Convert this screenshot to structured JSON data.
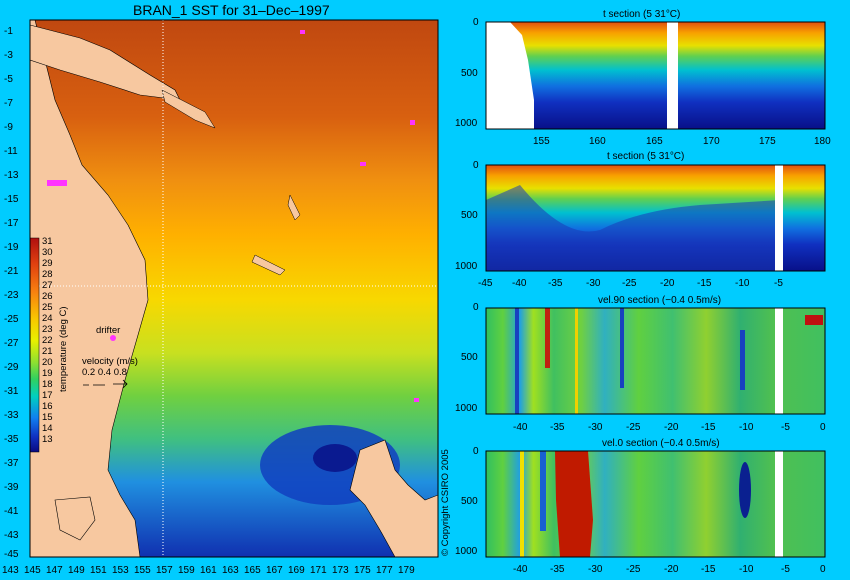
{
  "map": {
    "title": "BRAN_1 SST for 31–Dec–1997",
    "lon_ticks": [
      "143",
      "145",
      "147",
      "149",
      "151",
      "153",
      "155",
      "157",
      "159",
      "161",
      "163",
      "165",
      "167",
      "169",
      "171",
      "173",
      "175",
      "177",
      "179"
    ],
    "lat_ticks": [
      "-1",
      "-3",
      "-5",
      "-7",
      "-9",
      "-11",
      "-13",
      "-15",
      "-17",
      "-19",
      "-21",
      "-23",
      "-25",
      "-27",
      "-29",
      "-31",
      "-33",
      "-35",
      "-37",
      "-39",
      "-41",
      "-43",
      "-45"
    ],
    "colorbar_label": "temperature (deg C)",
    "colorbar_ticks": [
      "31",
      "30",
      "29",
      "28",
      "27",
      "26",
      "25",
      "24",
      "23",
      "22",
      "21",
      "20",
      "19",
      "18",
      "17",
      "16",
      "15",
      "14",
      "13"
    ],
    "drifter_label": "drifter",
    "velocity_label": "velocity (m/s)",
    "velocity_values": "0.2 0.4 0.8",
    "copyright": "© Copyright CSIRO 2005",
    "land_color": "#f7c8a0",
    "drifter_color": "#ff33ff"
  },
  "panels": [
    {
      "title": "t section (5       31°C)",
      "x_ticks": [
        "155",
        "160",
        "165",
        "170",
        "175",
        "180"
      ],
      "y_ticks": [
        "0",
        "500",
        "1000"
      ]
    },
    {
      "title": "t section (5       31°C)",
      "x_ticks": [
        "-45",
        "-40",
        "-35",
        "-30",
        "-25",
        "-20",
        "-15",
        "-10",
        "-5"
      ],
      "y_ticks": [
        "0",
        "500",
        "1000"
      ]
    },
    {
      "title": "vel.90 section (−0.4       0.5m/s)",
      "x_ticks": [
        "-40",
        "-35",
        "-30",
        "-25",
        "-20",
        "-15",
        "-10",
        "-5",
        "0"
      ],
      "y_ticks": [
        "0",
        "500",
        "1000"
      ]
    },
    {
      "title": "vel.0 section (−0.4       0.5m/s)",
      "x_ticks": [
        "-40",
        "-35",
        "-30",
        "-25",
        "-20",
        "-15",
        "-10",
        "-5",
        "0"
      ],
      "y_ticks": [
        "0",
        "500",
        "1000"
      ]
    }
  ],
  "chart_data": [
    {
      "type": "heatmap",
      "title": "BRAN_1 SST for 31–Dec–1997",
      "xlim": [
        143,
        180
      ],
      "ylim": [
        -45,
        0
      ],
      "colorbar_range": [
        13,
        31
      ],
      "colorbar_label": "temperature (deg C)"
    },
    {
      "type": "heatmap",
      "title": "t section (5 31°C)",
      "xlim": [
        150,
        180
      ],
      "ylim": [
        0,
        1000
      ]
    },
    {
      "type": "heatmap",
      "title": "t section (5 31°C)",
      "xlim": [
        -45,
        0
      ],
      "ylim": [
        0,
        1000
      ]
    },
    {
      "type": "heatmap",
      "title": "vel.90 section (−0.4 0.5m/s)",
      "xlim": [
        -45,
        0
      ],
      "ylim": [
        0,
        1000
      ]
    },
    {
      "type": "heatmap",
      "title": "vel.0 section (−0.4 0.5m/s)",
      "xlim": [
        -45,
        0
      ],
      "ylim": [
        0,
        1000
      ]
    }
  ]
}
